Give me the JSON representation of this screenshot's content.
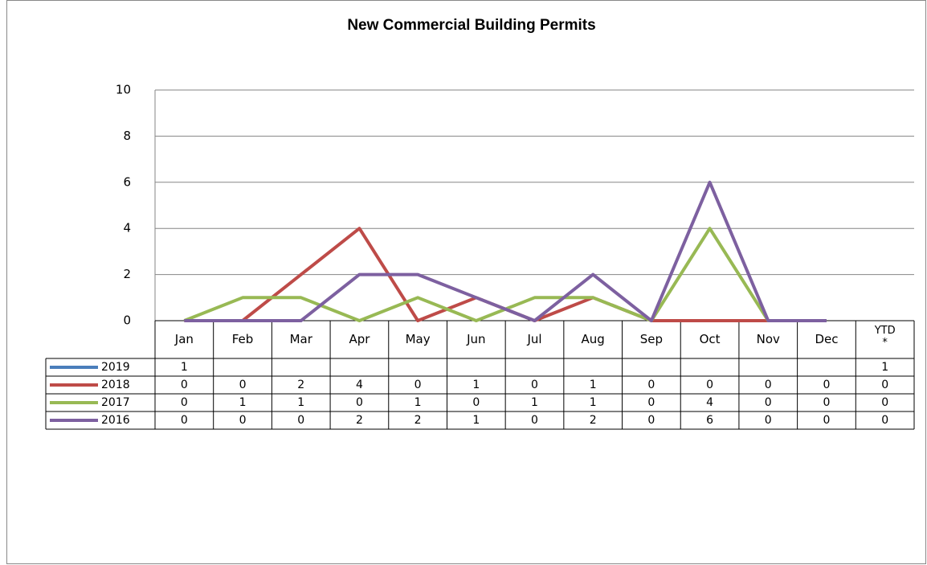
{
  "chart_data": {
    "type": "line",
    "title": "New Commercial  Building Permits",
    "categories": [
      "Jan",
      "Feb",
      "Mar",
      "Apr",
      "May",
      "Jun",
      "Jul",
      "Aug",
      "Sep",
      "Oct",
      "Nov",
      "Dec"
    ],
    "ytd_label": "YTD *",
    "series": [
      {
        "name": "2019",
        "color": "#4a7ebb",
        "values": [
          1,
          null,
          null,
          null,
          null,
          null,
          null,
          null,
          null,
          null,
          null,
          null
        ],
        "ytd": 1
      },
      {
        "name": "2018",
        "color": "#be4b48",
        "values": [
          0,
          0,
          2,
          4,
          0,
          1,
          0,
          1,
          0,
          0,
          0,
          0
        ],
        "ytd": 0
      },
      {
        "name": "2017",
        "color": "#98b954",
        "values": [
          0,
          1,
          1,
          0,
          1,
          0,
          1,
          1,
          0,
          4,
          0,
          0
        ],
        "ytd": 0
      },
      {
        "name": "2016",
        "color": "#7d60a0",
        "values": [
          0,
          0,
          0,
          2,
          2,
          1,
          0,
          2,
          0,
          6,
          0,
          0
        ],
        "ytd": 0
      }
    ],
    "ylim": [
      0,
      10
    ],
    "yticks": [
      0,
      2,
      4,
      6,
      8,
      10
    ],
    "grid": true
  }
}
